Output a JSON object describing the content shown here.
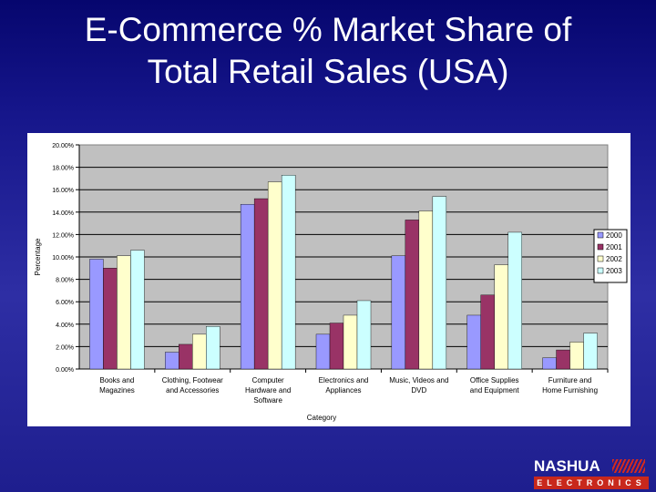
{
  "title": {
    "line1": "E-Commerce % Market Share of",
    "line2": "Total Retail Sales (USA)"
  },
  "logo": {
    "brand": "NASHUA",
    "tagline": "ELECTRONICS"
  },
  "colors": {
    "background": "#1e1e8e",
    "s2000": "#9999ff",
    "s2001": "#993366",
    "s2002": "#ffffcc",
    "s2003": "#ccffff",
    "plot_bg": "#c0c0c0",
    "logo_red": "#c8281c"
  },
  "chart_data": {
    "type": "bar",
    "title": "",
    "xlabel": "Category",
    "ylabel": "Percentage",
    "ylim": [
      0,
      20
    ],
    "yticks": [
      "0.00%",
      "2.00%",
      "4.00%",
      "6.00%",
      "8.00%",
      "10.00%",
      "12.00%",
      "14.00%",
      "16.00%",
      "18.00%",
      "20.00%"
    ],
    "grid": true,
    "legend": "right",
    "categories": [
      [
        "Books and",
        "Magazines"
      ],
      [
        "Clothing, Footwear",
        "and Accessories"
      ],
      [
        "Computer",
        "Hardware and",
        "Software"
      ],
      [
        "Electronics and",
        "Appliances"
      ],
      [
        "Music, Videos and",
        "DVD"
      ],
      [
        "Office Supplies",
        "and Equipment"
      ],
      [
        "Furniture and",
        "Home Furnishing"
      ]
    ],
    "series": [
      {
        "name": "2000",
        "color": "#9999ff",
        "values": [
          9.8,
          1.5,
          14.7,
          3.1,
          10.1,
          4.8,
          1.0
        ]
      },
      {
        "name": "2001",
        "color": "#993366",
        "values": [
          9.0,
          2.2,
          15.2,
          4.1,
          13.3,
          6.6,
          1.7
        ]
      },
      {
        "name": "2002",
        "color": "#ffffcc",
        "values": [
          10.1,
          3.1,
          16.7,
          4.8,
          14.1,
          9.3,
          2.4
        ]
      },
      {
        "name": "2003",
        "color": "#ccffff",
        "values": [
          10.6,
          3.8,
          17.3,
          6.1,
          15.4,
          12.2,
          3.2
        ]
      }
    ]
  }
}
